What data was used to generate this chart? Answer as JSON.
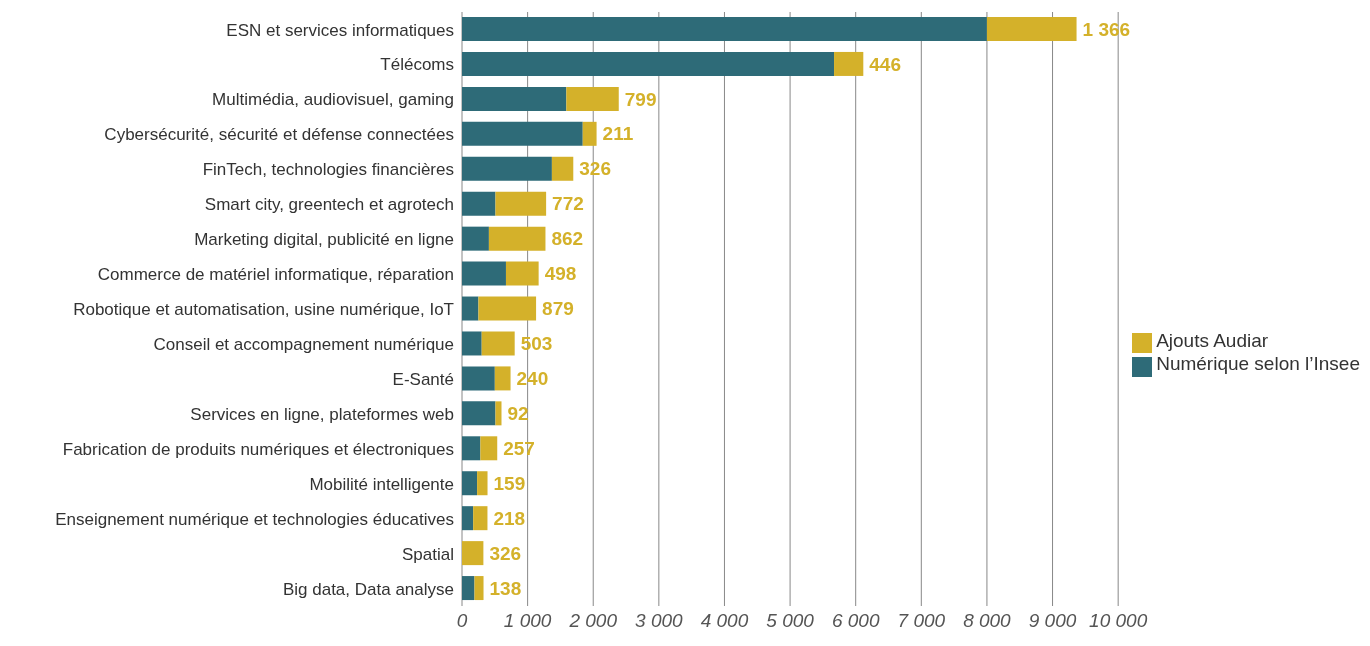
{
  "chart_data": {
    "type": "bar",
    "orientation": "horizontal",
    "stacked": true,
    "categories": [
      "ESN et services informatiques",
      "Télécoms",
      "Multimédia, audiovisuel, gaming",
      "Cybersécurité, sécurité et défense connectées",
      "FinTech, technologies financières",
      "Smart city, greentech et agrotech",
      "Marketing digital, publicité en ligne",
      "Commerce de matériel informatique, réparation",
      "Robotique et automatisation, usine numérique, IoT",
      "Conseil et accompagnement numérique",
      "E-Santé",
      "Services en ligne, plateformes web",
      "Fabrication de produits numériques et électroniques",
      "Mobilité intelligente",
      "Enseignement numérique et technologies éducatives",
      "Spatial",
      "Big data, Data analyse"
    ],
    "series": [
      {
        "name": "Numérique selon l’Insee",
        "color": "#2e6b78",
        "values": [
          8000,
          5670,
          1590,
          1840,
          1370,
          510,
          410,
          670,
          250,
          300,
          500,
          510,
          280,
          230,
          170,
          0,
          190
        ]
      },
      {
        "name": "Ajouts Audiar",
        "color": "#d4b12a",
        "values": [
          1366,
          446,
          799,
          211,
          326,
          772,
          862,
          498,
          879,
          503,
          240,
          92,
          257,
          159,
          218,
          326,
          138
        ],
        "value_labels": [
          "1 366",
          "446",
          "799",
          "211",
          "326",
          "772",
          "862",
          "498",
          "879",
          "503",
          "240",
          "92",
          "257",
          "159",
          "218",
          "326",
          "138"
        ]
      }
    ],
    "xlim": [
      0,
      10000
    ],
    "xticks": [
      0,
      {
        "value": 1000,
        "label": "1 000"
      },
      {
        "value": 2000,
        "label": "2 000"
      },
      {
        "value": 3000,
        "label": "3 000"
      },
      {
        "value": 4000,
        "label": "4 000"
      },
      {
        "value": 5000,
        "label": "5 000"
      },
      {
        "value": 6000,
        "label": "6 000"
      },
      {
        "value": 7000,
        "label": "7 000"
      },
      {
        "value": 8000,
        "label": "8 000"
      },
      {
        "value": 9000,
        "label": "9 000"
      },
      {
        "value": 10000,
        "label": "10 000"
      }
    ],
    "grid": "x",
    "legend": "right"
  }
}
